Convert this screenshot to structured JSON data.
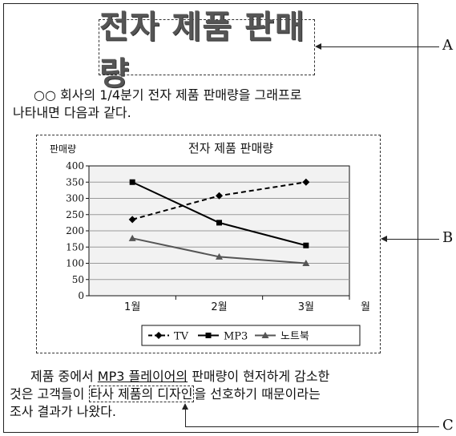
{
  "title": "전자 제품 판매량",
  "paragraph1": {
    "line1": "○○ 회사의 1/4분기 전자 제품 판매량을 그래프로",
    "line2": "나타내면 다음과 같다."
  },
  "paragraph2": {
    "line1_pre": "제품 중에서 ",
    "line1_u": "MP3 플레이어의",
    "line1_post": " 판매량이 현저하게 감소한",
    "line2_pre": "것은 고객들이 ",
    "line2_box": "타사 제품의 디자인",
    "line2_post": "을 선호하기 때문이라는",
    "line3": "조사 결과가 나왔다."
  },
  "callouts": {
    "a": "A",
    "b": "B",
    "c": "C"
  },
  "chart_data": {
    "type": "line",
    "title": "전자 제품 판매량",
    "ylabel": "판매량",
    "xlabel": "월",
    "categories": [
      "1월",
      "2월",
      "3월"
    ],
    "ylim": [
      0,
      400
    ],
    "yticks": [
      0,
      50,
      100,
      150,
      200,
      250,
      300,
      350,
      400
    ],
    "grid": true,
    "legend_position": "bottom-right",
    "series": [
      {
        "name": "TV",
        "values": [
          235,
          308,
          350
        ],
        "marker": "diamond",
        "style": "dashed",
        "color": "#000000"
      },
      {
        "name": "MP3",
        "values": [
          350,
          225,
          155
        ],
        "marker": "square",
        "style": "solid",
        "color": "#000000"
      },
      {
        "name": "노트북",
        "values": [
          177,
          120,
          100
        ],
        "marker": "triangle",
        "style": "solid",
        "color": "#555555"
      }
    ]
  }
}
